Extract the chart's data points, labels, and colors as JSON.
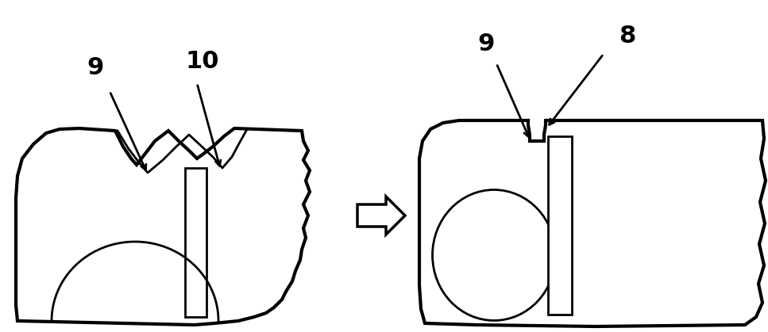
{
  "bg_color": "#ffffff",
  "line_color": "#000000",
  "lw_thick": 3.0,
  "lw_thin": 2.0,
  "fig_width": 9.67,
  "fig_height": 4.19
}
